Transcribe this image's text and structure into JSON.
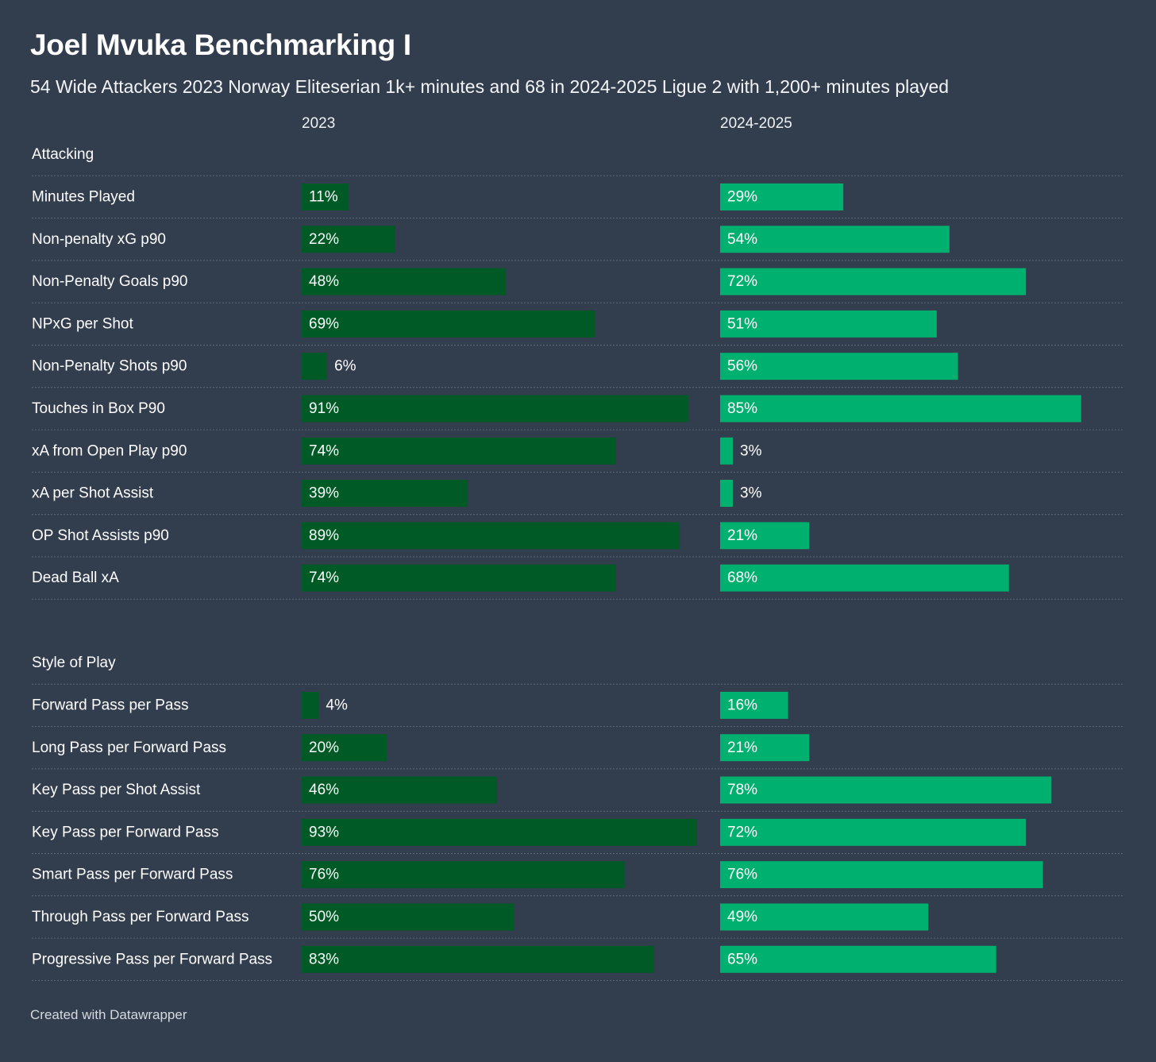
{
  "title": "Joel Mvuka Benchmarking I",
  "subtitle": "54 Wide Attackers 2023 Norway Eliteserian 1k+ minutes and 68 in 2024-2025 Ligue 2 with 1,200+ minutes played",
  "footer": "Created with Datawrapper",
  "colors": {
    "background": "#323d4e",
    "series_2023": "#005a25",
    "series_2024_2025": "#00b06f",
    "divider": "#5d6878"
  },
  "chart_data": {
    "type": "bar",
    "orientation": "horizontal",
    "value_unit": "%",
    "xlim": [
      0,
      100
    ],
    "series": [
      {
        "name": "2023",
        "color": "#005a25"
      },
      {
        "name": "2024-2025",
        "color": "#00b06f"
      }
    ],
    "groups": [
      {
        "name": "Attacking",
        "rows": [
          {
            "label": "Minutes Played",
            "values": [
              11,
              29
            ]
          },
          {
            "label": "Non-penalty xG p90",
            "values": [
              22,
              54
            ]
          },
          {
            "label": "Non-Penalty Goals p90",
            "values": [
              48,
              72
            ]
          },
          {
            "label": "NPxG per Shot",
            "values": [
              69,
              51
            ]
          },
          {
            "label": "Non-Penalty Shots p90",
            "values": [
              6,
              56
            ]
          },
          {
            "label": "Touches in Box P90",
            "values": [
              91,
              85
            ]
          },
          {
            "label": "xA from Open Play p90",
            "values": [
              74,
              3
            ]
          },
          {
            "label": "xA per Shot Assist",
            "values": [
              39,
              3
            ]
          },
          {
            "label": "OP Shot Assists p90",
            "values": [
              89,
              21
            ]
          },
          {
            "label": "Dead Ball xA",
            "values": [
              74,
              68
            ]
          }
        ]
      },
      {
        "name": "Style of Play",
        "rows": [
          {
            "label": "Forward Pass per Pass",
            "values": [
              4,
              16
            ]
          },
          {
            "label": "Long Pass per Forward Pass",
            "values": [
              20,
              21
            ]
          },
          {
            "label": "Key Pass per Shot Assist",
            "values": [
              46,
              78
            ]
          },
          {
            "label": "Key Pass per Forward Pass",
            "values": [
              93,
              72
            ]
          },
          {
            "label": "Smart Pass per Forward Pass",
            "values": [
              76,
              76
            ]
          },
          {
            "label": "Through Pass per Forward Pass",
            "values": [
              50,
              49
            ]
          },
          {
            "label": "Progressive Pass per Forward Pass",
            "values": [
              83,
              65
            ]
          }
        ]
      }
    ]
  }
}
